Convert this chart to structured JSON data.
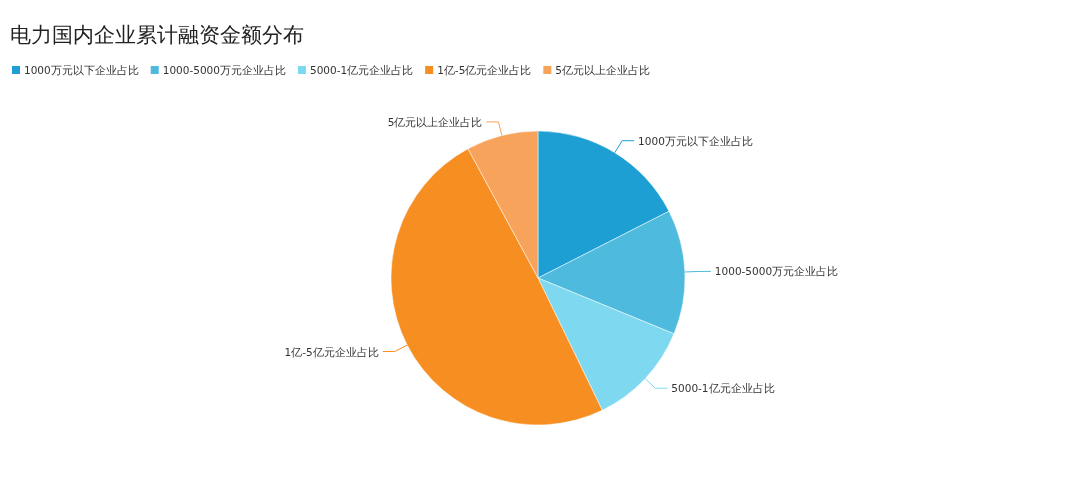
{
  "chart_data": {
    "type": "pie",
    "title": "电力国内企业累计融资金额分布",
    "categories": [
      "1000万元以下企业占比",
      "1000-5000万元企业占比",
      "5000-1亿元企业占比",
      "1亿-5亿元企业占比",
      "5亿元以上企业占比"
    ],
    "values": [
      17.5,
      13.7,
      11.6,
      49.3,
      7.9
    ],
    "colors": [
      "#1e9fd4",
      "#4dbade",
      "#7ed8f0",
      "#f78e22",
      "#f7a35c"
    ],
    "legend": "top left"
  }
}
